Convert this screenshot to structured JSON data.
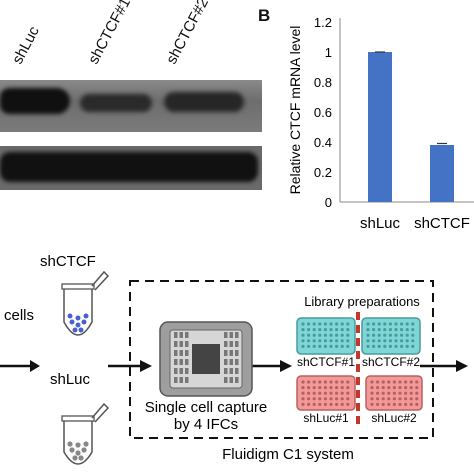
{
  "panel_a": {
    "lanes": [
      "shLuc",
      "shCTCF#1",
      "shCTCF#2"
    ]
  },
  "panel_b": {
    "letter": "B",
    "chart_data": {
      "type": "bar",
      "categories": [
        "shLuc",
        "shCTCF"
      ],
      "values": [
        1.0,
        0.38
      ],
      "errors": [
        0.0,
        0.01
      ],
      "ylabel": "Relative CTCF mRNA level",
      "ylim": [
        0,
        1.2
      ],
      "yticks": [
        "0",
        "0.2",
        "0.4",
        "0.6",
        "0.8",
        "1",
        "1.2"
      ],
      "bar_color": "#4472c4"
    }
  },
  "workflow": {
    "shctcf_label": "shCTCF",
    "cells_label": "cells",
    "shluc_label": "shLuc",
    "capture_label_line1": "Single cell capture",
    "capture_label_line2": "by 4 IFCs",
    "library_title": "Library preparations",
    "plates": [
      "shCTCF#1",
      "shCTCF#2",
      "shLuc#1",
      "shLuc#2"
    ],
    "system_label": "Fluidigm  C1 system",
    "colors": {
      "ctcf_plate": "#7fd6d6",
      "luc_plate": "#f29a9a",
      "divider": "#c0392b"
    }
  }
}
